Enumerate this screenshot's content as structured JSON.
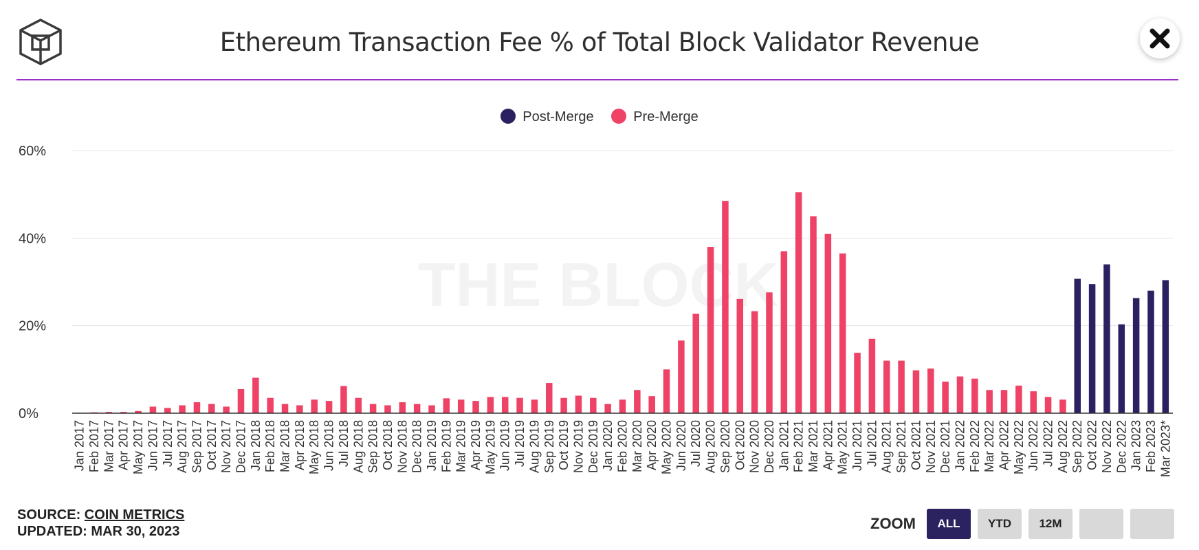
{
  "title": "Ethereum Transaction Fee % of Total Block Validator Revenue",
  "logo_icon": "the-block-cube-logo",
  "close_icon": "close-x-icon",
  "watermark": "THE BLOCK",
  "colors": {
    "post_merge": "#2b2160",
    "pre_merge": "#ee4266",
    "divider": "#9b30c7",
    "grid": "#e6e6e6",
    "axis": "#333333"
  },
  "legend": [
    {
      "label": "Post-Merge",
      "color": "#2b2160"
    },
    {
      "label": "Pre-Merge",
      "color": "#ee4266"
    }
  ],
  "footer": {
    "source_prefix": "SOURCE: ",
    "source_link": "COIN METRICS",
    "updated": "UPDATED: MAR 30, 2023"
  },
  "zoom": {
    "label": "ZOOM",
    "buttons": [
      "ALL",
      "YTD",
      "12M",
      "",
      ""
    ],
    "active": "ALL"
  },
  "chart_data": {
    "type": "bar",
    "title": "Ethereum Transaction Fee % of Total Block Validator Revenue",
    "xlabel": "",
    "ylabel": "",
    "ylim": [
      0,
      60
    ],
    "yticks": [
      "0%",
      "20%",
      "40%",
      "60%"
    ],
    "ytick_values": [
      0,
      20,
      40,
      60
    ],
    "grid": true,
    "legend_position": "top-center",
    "categories": [
      "Jan 2017",
      "Feb 2017",
      "Mar 2017",
      "Apr 2017",
      "May 2017",
      "Jun 2017",
      "Jul 2017",
      "Aug 2017",
      "Sep 2017",
      "Oct 2017",
      "Nov 2017",
      "Dec 2017",
      "Jan 2018",
      "Feb 2018",
      "Mar 2018",
      "Apr 2018",
      "May 2018",
      "Jun 2018",
      "Jul 2018",
      "Aug 2018",
      "Sep 2018",
      "Oct 2018",
      "Nov 2018",
      "Dec 2018",
      "Jan 2019",
      "Feb 2019",
      "Mar 2019",
      "Apr 2019",
      "May 2019",
      "Jun 2019",
      "Jul 2019",
      "Aug 2019",
      "Sep 2019",
      "Oct 2019",
      "Nov 2019",
      "Dec 2019",
      "Jan 2020",
      "Feb 2020",
      "Mar 2020",
      "Apr 2020",
      "May 2020",
      "Jun 2020",
      "Jul 2020",
      "Aug 2020",
      "Sep 2020",
      "Oct 2020",
      "Nov 2020",
      "Dec 2020",
      "Jan 2021",
      "Feb 2021",
      "Mar 2021",
      "Apr 2021",
      "May 2021",
      "Jun 2021",
      "Jul 2021",
      "Aug 2021",
      "Sep 2021",
      "Oct 2021",
      "Nov 2021",
      "Dec 2021",
      "Jan 2022",
      "Feb 2022",
      "Mar 2022",
      "Apr 2022",
      "May 2022",
      "Jun 2022",
      "Jul 2022",
      "Aug 2022",
      "Sep 2022",
      "Oct 2022",
      "Nov 2022",
      "Dec 2022",
      "Jan 2023",
      "Feb 2023",
      "Mar 2023*"
    ],
    "series": [
      {
        "name": "Pre-Merge",
        "color": "#ee4266",
        "values": [
          0.1,
          0.2,
          0.3,
          0.3,
          0.5,
          1.5,
          1.2,
          1.8,
          2.5,
          2.1,
          1.5,
          5.5,
          8.1,
          3.5,
          2.1,
          1.8,
          3.1,
          2.8,
          6.2,
          3.5,
          2.1,
          1.8,
          2.5,
          2.1,
          1.8,
          3.4,
          3.1,
          2.8,
          3.7,
          3.7,
          3.5,
          3.1,
          6.9,
          3.5,
          4.0,
          3.5,
          2.1,
          3.1,
          5.3,
          3.9,
          10.0,
          16.6,
          22.7,
          38.0,
          48.5,
          26.1,
          23.3,
          27.6,
          37.0,
          50.5,
          45.0,
          41.0,
          36.5,
          13.8,
          17.0,
          12.0,
          12.0,
          9.8,
          10.2,
          7.2,
          8.4,
          7.9,
          5.3,
          5.3,
          6.3,
          5.0,
          3.7,
          3.1,
          null,
          null,
          null,
          null,
          null,
          null,
          null
        ]
      },
      {
        "name": "Post-Merge",
        "color": "#2b2160",
        "values": [
          null,
          null,
          null,
          null,
          null,
          null,
          null,
          null,
          null,
          null,
          null,
          null,
          null,
          null,
          null,
          null,
          null,
          null,
          null,
          null,
          null,
          null,
          null,
          null,
          null,
          null,
          null,
          null,
          null,
          null,
          null,
          null,
          null,
          null,
          null,
          null,
          null,
          null,
          null,
          null,
          null,
          null,
          null,
          null,
          null,
          null,
          null,
          null,
          null,
          null,
          null,
          null,
          null,
          null,
          null,
          null,
          null,
          null,
          null,
          null,
          null,
          null,
          null,
          null,
          null,
          null,
          null,
          null,
          30.7,
          29.5,
          34.0,
          20.3,
          26.3,
          28.0,
          30.4
        ]
      }
    ]
  }
}
